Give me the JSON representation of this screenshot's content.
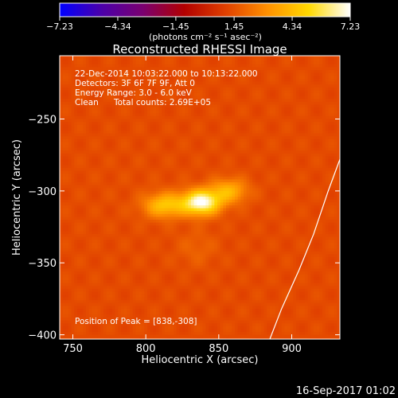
{
  "chart_data": {
    "type": "heatmap",
    "title": "Reconstructed RHESSI Image",
    "xlabel": "Heliocentric X (arcsec)",
    "ylabel": "Heliocentric Y (arcsec)",
    "xlim": [
      741,
      933
    ],
    "ylim": [
      -403,
      -206
    ],
    "xticks": [
      750,
      800,
      850,
      900
    ],
    "yticks": [
      -250,
      -300,
      -350,
      -400
    ],
    "xtick_labels": [
      "750",
      "800",
      "850",
      "900"
    ],
    "ytick_labels": [
      "−250",
      "−300",
      "−350",
      "−400"
    ],
    "colorbar": {
      "range": [
        -7.23,
        7.23
      ],
      "ticks": [
        -7.23,
        -4.34,
        -1.45,
        1.45,
        4.34,
        7.23
      ],
      "tick_labels": [
        "−7.23",
        "−4.34",
        "−1.45",
        "1.45",
        "4.34",
        "7.23"
      ],
      "units_label": "(photons cm⁻² s⁻¹ asec⁻²)",
      "colormap": [
        "#0000ff",
        "#4b00aa",
        "#7a0070",
        "#b20000",
        "#e04000",
        "#ff9000",
        "#ffd800",
        "#ffffff"
      ]
    },
    "sources": [
      {
        "x": 838,
        "y": -308,
        "peak": 7.23
      },
      {
        "x": 813,
        "y": -310,
        "peak": 4.6
      },
      {
        "x": 857,
        "y": -300,
        "peak": 4.0
      },
      {
        "x": 835,
        "y": -340,
        "peak": 1.9
      },
      {
        "x": 795,
        "y": -300,
        "peak": 1.4
      }
    ],
    "background_level": 1.3,
    "limb_curve": [
      [
        933,
        -278
      ],
      [
        925,
        -300
      ],
      [
        915,
        -330
      ],
      [
        905,
        -355
      ],
      [
        893,
        -382
      ],
      [
        885,
        -403
      ]
    ]
  },
  "annotations": {
    "time_range": "22-Dec-2014 10:03:22.000 to 10:13:22.000",
    "detectors": "Detectors: 3F 6F 7F 9F, Att 0",
    "energy": "Energy Range: 3.0 - 6.0 keV",
    "clean": "Clean",
    "counts": "Total counts: 2.69E+05",
    "peak": "Position of Peak = [838,-308]"
  },
  "footer_timestamp": "16-Sep-2017 01:02"
}
